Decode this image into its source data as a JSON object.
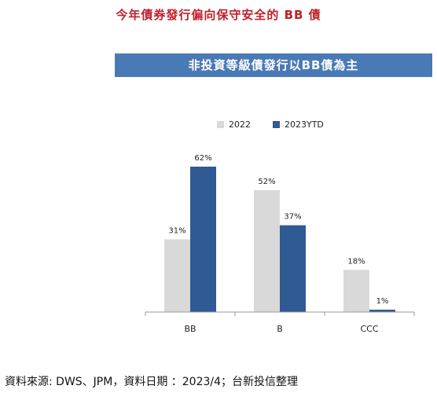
{
  "header": {
    "title": "今年債券發行偏向保守安全的 BB 債",
    "banner": "非投資等級債發行以BB債為主"
  },
  "colors": {
    "title": "#c0202a",
    "banner_bg": "#4a7ab5",
    "series_2022": "#d9d9d9",
    "series_2023": "#2f5a93"
  },
  "chart_data": {
    "type": "bar",
    "categories": [
      "BB",
      "B",
      "CCC"
    ],
    "series": [
      {
        "name": "2022",
        "values": [
          31,
          52,
          18
        ],
        "labels": [
          "31%",
          "52%",
          "18%"
        ]
      },
      {
        "name": "2023YTD",
        "values": [
          62,
          37,
          1
        ],
        "labels": [
          "62%",
          "37%",
          "1%"
        ]
      }
    ],
    "ylim": [
      0,
      62
    ],
    "grid": false,
    "legend": "top"
  },
  "footer": {
    "source": "資料來源: DWS、JPM，資料日期 ：2023/4；台新投信整理"
  }
}
